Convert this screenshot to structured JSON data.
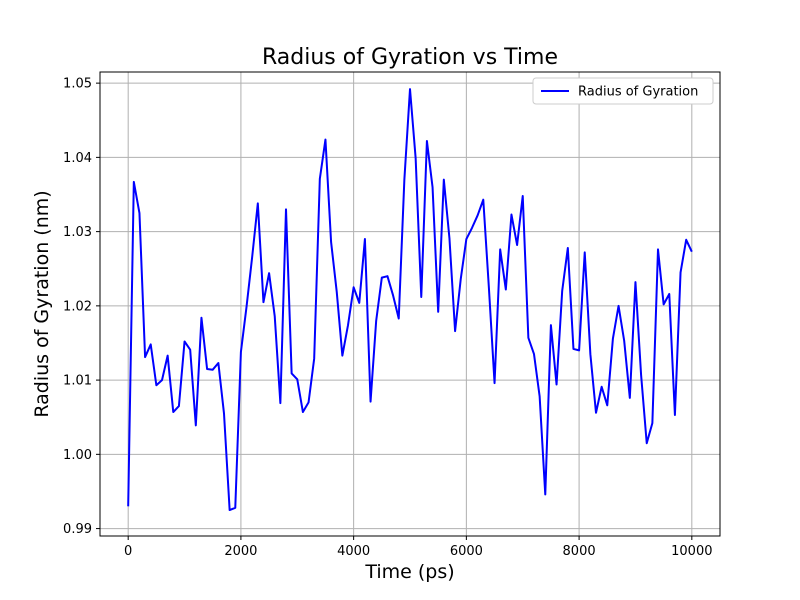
{
  "chart_data": {
    "type": "line",
    "title": "Radius of Gyration vs Time",
    "xlabel": "Time (ps)",
    "ylabel": "Radius of Gyration (nm)",
    "xlim": [
      -500,
      10500
    ],
    "ylim": [
      0.989,
      1.0515
    ],
    "xticks": [
      0,
      2000,
      4000,
      6000,
      8000,
      10000
    ],
    "xtick_labels": [
      "0",
      "2000",
      "4000",
      "6000",
      "8000",
      "10000"
    ],
    "yticks": [
      0.99,
      1.0,
      1.01,
      1.02,
      1.03,
      1.04,
      1.05
    ],
    "ytick_labels": [
      "0.99",
      "1.00",
      "1.01",
      "1.02",
      "1.03",
      "1.04",
      "1.05"
    ],
    "grid": true,
    "legend_position": "upper right",
    "series": [
      {
        "name": "Radius of Gyration",
        "color": "#0000ff",
        "x": [
          0,
          100,
          200,
          300,
          400,
          500,
          600,
          700,
          800,
          900,
          1000,
          1100,
          1200,
          1300,
          1400,
          1500,
          1600,
          1700,
          1800,
          1900,
          2000,
          2100,
          2200,
          2300,
          2400,
          2500,
          2600,
          2700,
          2800,
          2900,
          3000,
          3100,
          3200,
          3300,
          3400,
          3500,
          3600,
          3700,
          3800,
          3900,
          4000,
          4100,
          4200,
          4300,
          4400,
          4500,
          4600,
          4700,
          4800,
          4900,
          5000,
          5100,
          5200,
          5300,
          5400,
          5500,
          5600,
          5700,
          5800,
          5900,
          6000,
          6100,
          6200,
          6300,
          6400,
          6500,
          6600,
          6700,
          6800,
          6900,
          7000,
          7100,
          7200,
          7300,
          7400,
          7500,
          7600,
          7700,
          7800,
          7900,
          8000,
          8100,
          8200,
          8300,
          8400,
          8500,
          8600,
          8700,
          8800,
          8900,
          9000,
          9100,
          9200,
          9300,
          9400,
          9500,
          9600,
          9700,
          9800,
          9900,
          10000
        ],
        "values": [
          0.993,
          1.0367,
          1.0325,
          1.0131,
          1.0148,
          1.0093,
          1.01,
          1.0133,
          1.0057,
          1.0065,
          1.0152,
          1.0141,
          1.0039,
          1.0184,
          1.0115,
          1.0114,
          1.0123,
          1.0055,
          0.9925,
          0.9928,
          1.0138,
          1.0199,
          1.0266,
          1.0338,
          1.0205,
          1.0244,
          1.0186,
          1.0069,
          1.033,
          1.0109,
          1.0101,
          1.0057,
          1.007,
          1.0129,
          1.0371,
          1.0424,
          1.0286,
          1.0219,
          1.0133,
          1.0174,
          1.0225,
          1.0204,
          1.029,
          1.0071,
          1.018,
          1.0238,
          1.024,
          1.0214,
          1.0183,
          1.037,
          1.0492,
          1.0399,
          1.0212,
          1.0422,
          1.036,
          1.0192,
          1.037,
          1.0291,
          1.0166,
          1.0236,
          1.029,
          1.0305,
          1.0322,
          1.0343,
          1.0224,
          1.0096,
          1.0276,
          1.0222,
          1.0323,
          1.0282,
          1.0348,
          1.0157,
          1.0135,
          1.0078,
          0.9946,
          1.0174,
          1.0094,
          1.022,
          1.0278,
          1.0142,
          1.014,
          1.0272,
          1.0135,
          1.0056,
          1.0091,
          1.0066,
          1.0156,
          1.02,
          1.0153,
          1.0076,
          1.0232,
          1.0107,
          1.0015,
          1.0042,
          1.0276,
          1.0202,
          1.0216,
          1.0053,
          1.0245,
          1.0289,
          1.0273
        ]
      }
    ]
  }
}
